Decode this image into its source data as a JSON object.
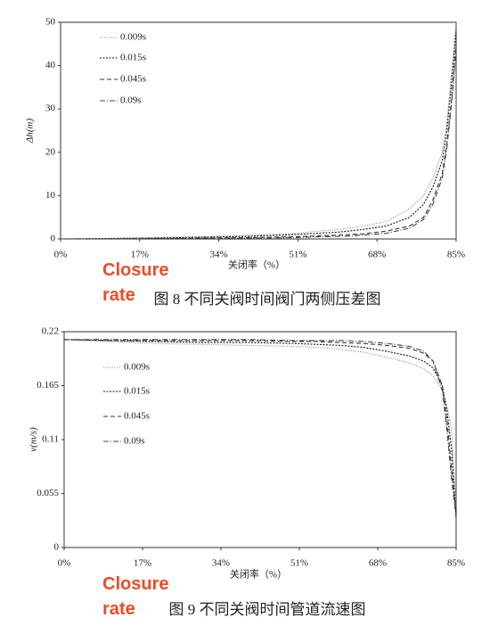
{
  "chart_data": [
    {
      "type": "line",
      "ylabel": "Δh(m)",
      "xlabel": "关闭率（%）",
      "caption": "图 8   不同关阀时间阀门两侧压差图",
      "annotation": "Closure rate",
      "xlim": [
        0,
        85
      ],
      "xticks": [
        {
          "value": 0,
          "label": "0%"
        },
        {
          "value": 17,
          "label": "17%"
        },
        {
          "value": 34,
          "label": "34%"
        },
        {
          "value": 51,
          "label": "51%"
        },
        {
          "value": 68,
          "label": "68%"
        },
        {
          "value": 85,
          "label": "85%"
        }
      ],
      "ylim": [
        0,
        50
      ],
      "yticks": [
        0,
        10,
        20,
        30,
        40,
        50
      ],
      "x": [
        0,
        10,
        20,
        30,
        40,
        50,
        55,
        60,
        65,
        70,
        75,
        78,
        80,
        82,
        83,
        84,
        85
      ],
      "series": [
        {
          "name": "0.009s",
          "color": "#888888",
          "dash": "1,1.5",
          "values": [
            0,
            0.1,
            0.3,
            0.5,
            0.8,
            1.2,
            1.8,
            2.2,
            3,
            4,
            7,
            10,
            14,
            20,
            27,
            38,
            50
          ]
        },
        {
          "name": "0.015s",
          "color": "#111111",
          "dash": "2,1.5",
          "values": [
            0,
            0.1,
            0.2,
            0.4,
            0.6,
            1.0,
            1.3,
            1.6,
            2.2,
            3,
            5,
            8,
            12,
            18,
            25,
            36,
            48
          ]
        },
        {
          "name": "0.045s",
          "color": "#333333",
          "dash": "5,3",
          "values": [
            0,
            0,
            0.1,
            0.2,
            0.3,
            0.5,
            0.7,
            0.9,
            1.2,
            1.8,
            3,
            5,
            9,
            15,
            22,
            32,
            45
          ]
        },
        {
          "name": "0.09s",
          "color": "#444444",
          "dash": "6,2,1,2",
          "values": [
            0,
            0,
            0.1,
            0.1,
            0.2,
            0.3,
            0.5,
            0.6,
            0.9,
            1.3,
            2.5,
            4.5,
            8,
            14,
            21,
            31,
            44
          ]
        }
      ]
    },
    {
      "type": "line",
      "ylabel": "v(m/s)",
      "xlabel": "关闭率（%）",
      "caption": "图 9   不同关阀时间管道流速图",
      "annotation": "Closure rate",
      "xlim": [
        0,
        85
      ],
      "xticks": [
        {
          "value": 0,
          "label": "0%"
        },
        {
          "value": 17,
          "label": "17%"
        },
        {
          "value": 34,
          "label": "34%"
        },
        {
          "value": 51,
          "label": "51%"
        },
        {
          "value": 68,
          "label": "68%"
        },
        {
          "value": 85,
          "label": "85%"
        }
      ],
      "ylim": [
        0,
        0.22
      ],
      "yticks": [
        0,
        0.055,
        0.11,
        0.165,
        0.22
      ],
      "x": [
        0,
        10,
        20,
        30,
        40,
        50,
        55,
        60,
        65,
        70,
        75,
        78,
        80,
        82,
        83,
        84,
        85
      ],
      "series": [
        {
          "name": "0.009s",
          "color": "#888888",
          "dash": "1,1.5",
          "values": [
            0.212,
            0.21,
            0.208,
            0.207,
            0.206,
            0.205,
            0.204,
            0.202,
            0.199,
            0.194,
            0.188,
            0.182,
            0.175,
            0.16,
            0.145,
            0.12,
            0.04
          ]
        },
        {
          "name": "0.015s",
          "color": "#111111",
          "dash": "2,1.5",
          "values": [
            0.212,
            0.211,
            0.21,
            0.209,
            0.209,
            0.208,
            0.207,
            0.206,
            0.204,
            0.2,
            0.195,
            0.19,
            0.183,
            0.165,
            0.14,
            0.1,
            0.03
          ]
        },
        {
          "name": "0.045s",
          "color": "#333333",
          "dash": "5,3",
          "values": [
            0.212,
            0.211,
            0.211,
            0.211,
            0.211,
            0.21,
            0.21,
            0.209,
            0.208,
            0.206,
            0.203,
            0.198,
            0.19,
            0.165,
            0.13,
            0.08,
            0.035
          ]
        },
        {
          "name": "0.09s",
          "color": "#444444",
          "dash": "6,2,1,2",
          "values": [
            0.212,
            0.212,
            0.212,
            0.212,
            0.212,
            0.211,
            0.211,
            0.211,
            0.21,
            0.208,
            0.205,
            0.2,
            0.19,
            0.16,
            0.12,
            0.07,
            0.03
          ]
        }
      ]
    }
  ]
}
